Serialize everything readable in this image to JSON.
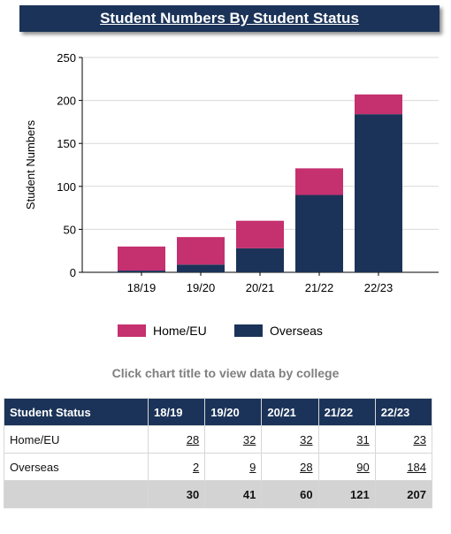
{
  "title": "Student Numbers By Student Status",
  "hint": "Click chart title to view data by college",
  "colors": {
    "home_eu": "#c5306f",
    "overseas": "#1b3358",
    "header": "#1b3358"
  },
  "chart_data": {
    "type": "bar",
    "stacked": true,
    "categories": [
      "18/19",
      "19/20",
      "20/21",
      "21/22",
      "22/23"
    ],
    "series": [
      {
        "name": "Overseas",
        "values": [
          2,
          9,
          28,
          90,
          184
        ],
        "color": "#1b3358"
      },
      {
        "name": "Home/EU",
        "values": [
          28,
          32,
          32,
          31,
          23
        ],
        "color": "#c5306f"
      }
    ],
    "ylabel": "Student Numbers",
    "xlabel": "",
    "ylim": [
      0,
      250
    ],
    "yticks": [
      "0",
      "50",
      "100",
      "150",
      "200",
      "250"
    ],
    "grid": true,
    "legend": [
      "Home/EU",
      "Overseas"
    ],
    "legend_position": "bottom"
  },
  "table": {
    "headers": [
      "Student Status",
      "18/19",
      "19/20",
      "20/21",
      "21/22",
      "22/23"
    ],
    "rows": [
      {
        "label": "Home/EU",
        "values": [
          "28",
          "32",
          "32",
          "31",
          "23"
        ]
      },
      {
        "label": "Overseas",
        "values": [
          "2",
          "9",
          "28",
          "90",
          "184"
        ]
      }
    ],
    "totals": [
      "30",
      "41",
      "60",
      "121",
      "207"
    ]
  }
}
